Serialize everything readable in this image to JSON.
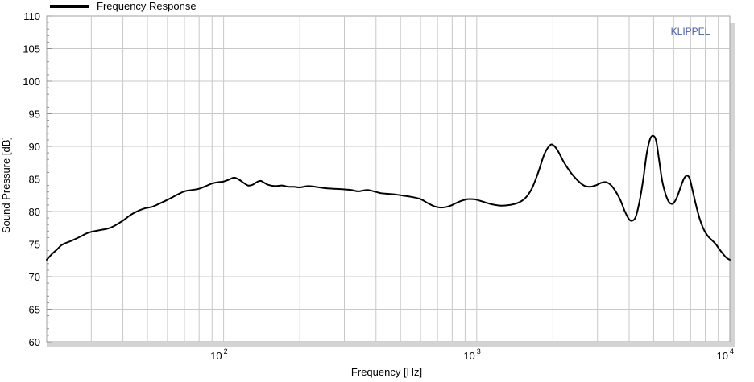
{
  "chart_data": {
    "type": "line",
    "title": "",
    "xlabel": "Frequency  [Hz]",
    "ylabel": "Sound Pressure  [dB]",
    "xscale": "log",
    "xlim": [
      20,
      10000
    ],
    "ylim": [
      60,
      110
    ],
    "grid": true,
    "legend_position": "top-left",
    "watermark": "KLIPPEL",
    "colors": {
      "line": "#000000",
      "grid": "#c8c8c8",
      "watermark": "#4a5aa8",
      "frame": "#a0a0a0"
    },
    "y_ticks": [
      {
        "value": 60,
        "label": "60"
      },
      {
        "value": 65,
        "label": "65"
      },
      {
        "value": 70,
        "label": "70"
      },
      {
        "value": 75,
        "label": "75"
      },
      {
        "value": 80,
        "label": "80"
      },
      {
        "value": 85,
        "label": "85"
      },
      {
        "value": 90,
        "label": "90"
      },
      {
        "value": 95,
        "label": "95"
      },
      {
        "value": 100,
        "label": "100"
      },
      {
        "value": 105,
        "label": "105"
      },
      {
        "value": 110,
        "label": "110"
      }
    ],
    "x_ticks": [
      {
        "value": 100,
        "base": "10",
        "exp": "2"
      },
      {
        "value": 1000,
        "base": "10",
        "exp": "3"
      },
      {
        "value": 10000,
        "base": "10",
        "exp": "4"
      }
    ],
    "series": [
      {
        "name": "Frequency Response",
        "points": [
          [
            20,
            72.6
          ],
          [
            21,
            73.5
          ],
          [
            22,
            74.2
          ],
          [
            23,
            74.9
          ],
          [
            25,
            75.5
          ],
          [
            27,
            76.1
          ],
          [
            29,
            76.7
          ],
          [
            31,
            77.0
          ],
          [
            33,
            77.2
          ],
          [
            35,
            77.4
          ],
          [
            37,
            77.8
          ],
          [
            40,
            78.6
          ],
          [
            43,
            79.5
          ],
          [
            46,
            80.1
          ],
          [
            49,
            80.5
          ],
          [
            52,
            80.7
          ],
          [
            55,
            81.1
          ],
          [
            60,
            81.8
          ],
          [
            65,
            82.5
          ],
          [
            70,
            83.1
          ],
          [
            75,
            83.3
          ],
          [
            80,
            83.5
          ],
          [
            85,
            83.9
          ],
          [
            90,
            84.3
          ],
          [
            95,
            84.5
          ],
          [
            100,
            84.6
          ],
          [
            105,
            84.9
          ],
          [
            110,
            85.2
          ],
          [
            115,
            84.9
          ],
          [
            120,
            84.4
          ],
          [
            125,
            84.0
          ],
          [
            130,
            84.1
          ],
          [
            135,
            84.5
          ],
          [
            140,
            84.7
          ],
          [
            145,
            84.4
          ],
          [
            150,
            84.1
          ],
          [
            160,
            83.9
          ],
          [
            170,
            84.0
          ],
          [
            180,
            83.8
          ],
          [
            190,
            83.8
          ],
          [
            200,
            83.7
          ],
          [
            215,
            83.9
          ],
          [
            230,
            83.8
          ],
          [
            250,
            83.6
          ],
          [
            270,
            83.5
          ],
          [
            300,
            83.4
          ],
          [
            320,
            83.3
          ],
          [
            340,
            83.1
          ],
          [
            370,
            83.3
          ],
          [
            400,
            83.0
          ],
          [
            420,
            82.8
          ],
          [
            450,
            82.7
          ],
          [
            480,
            82.6
          ],
          [
            520,
            82.4
          ],
          [
            560,
            82.2
          ],
          [
            600,
            81.9
          ],
          [
            640,
            81.3
          ],
          [
            680,
            80.8
          ],
          [
            720,
            80.6
          ],
          [
            760,
            80.7
          ],
          [
            800,
            81.0
          ],
          [
            840,
            81.4
          ],
          [
            880,
            81.7
          ],
          [
            920,
            81.9
          ],
          [
            960,
            81.9
          ],
          [
            1000,
            81.8
          ],
          [
            1080,
            81.4
          ],
          [
            1150,
            81.1
          ],
          [
            1250,
            80.9
          ],
          [
            1350,
            81.0
          ],
          [
            1450,
            81.3
          ],
          [
            1550,
            82.0
          ],
          [
            1650,
            83.5
          ],
          [
            1750,
            86.0
          ],
          [
            1850,
            88.8
          ],
          [
            1950,
            90.2
          ],
          [
            2020,
            90.1
          ],
          [
            2100,
            89.2
          ],
          [
            2200,
            87.7
          ],
          [
            2350,
            86.0
          ],
          [
            2500,
            84.8
          ],
          [
            2650,
            84.0
          ],
          [
            2800,
            83.8
          ],
          [
            2950,
            84.0
          ],
          [
            3100,
            84.4
          ],
          [
            3250,
            84.5
          ],
          [
            3400,
            84.0
          ],
          [
            3550,
            83.0
          ],
          [
            3700,
            81.7
          ],
          [
            3850,
            80.0
          ],
          [
            4000,
            78.8
          ],
          [
            4120,
            78.6
          ],
          [
            4250,
            79.2
          ],
          [
            4400,
            81.6
          ],
          [
            4550,
            85.0
          ],
          [
            4700,
            89.0
          ],
          [
            4850,
            91.2
          ],
          [
            5000,
            91.6
          ],
          [
            5120,
            90.8
          ],
          [
            5250,
            88.0
          ],
          [
            5400,
            84.8
          ],
          [
            5550,
            82.9
          ],
          [
            5700,
            81.7
          ],
          [
            5850,
            81.2
          ],
          [
            6000,
            81.3
          ],
          [
            6200,
            82.3
          ],
          [
            6400,
            83.8
          ],
          [
            6600,
            85.1
          ],
          [
            6800,
            85.5
          ],
          [
            6950,
            85.0
          ],
          [
            7100,
            83.5
          ],
          [
            7350,
            81.0
          ],
          [
            7600,
            78.9
          ],
          [
            7900,
            77.2
          ],
          [
            8200,
            76.2
          ],
          [
            8500,
            75.6
          ],
          [
            8800,
            75.0
          ],
          [
            9100,
            74.2
          ],
          [
            9400,
            73.5
          ],
          [
            9700,
            72.9
          ],
          [
            10000,
            72.6
          ]
        ]
      }
    ]
  }
}
